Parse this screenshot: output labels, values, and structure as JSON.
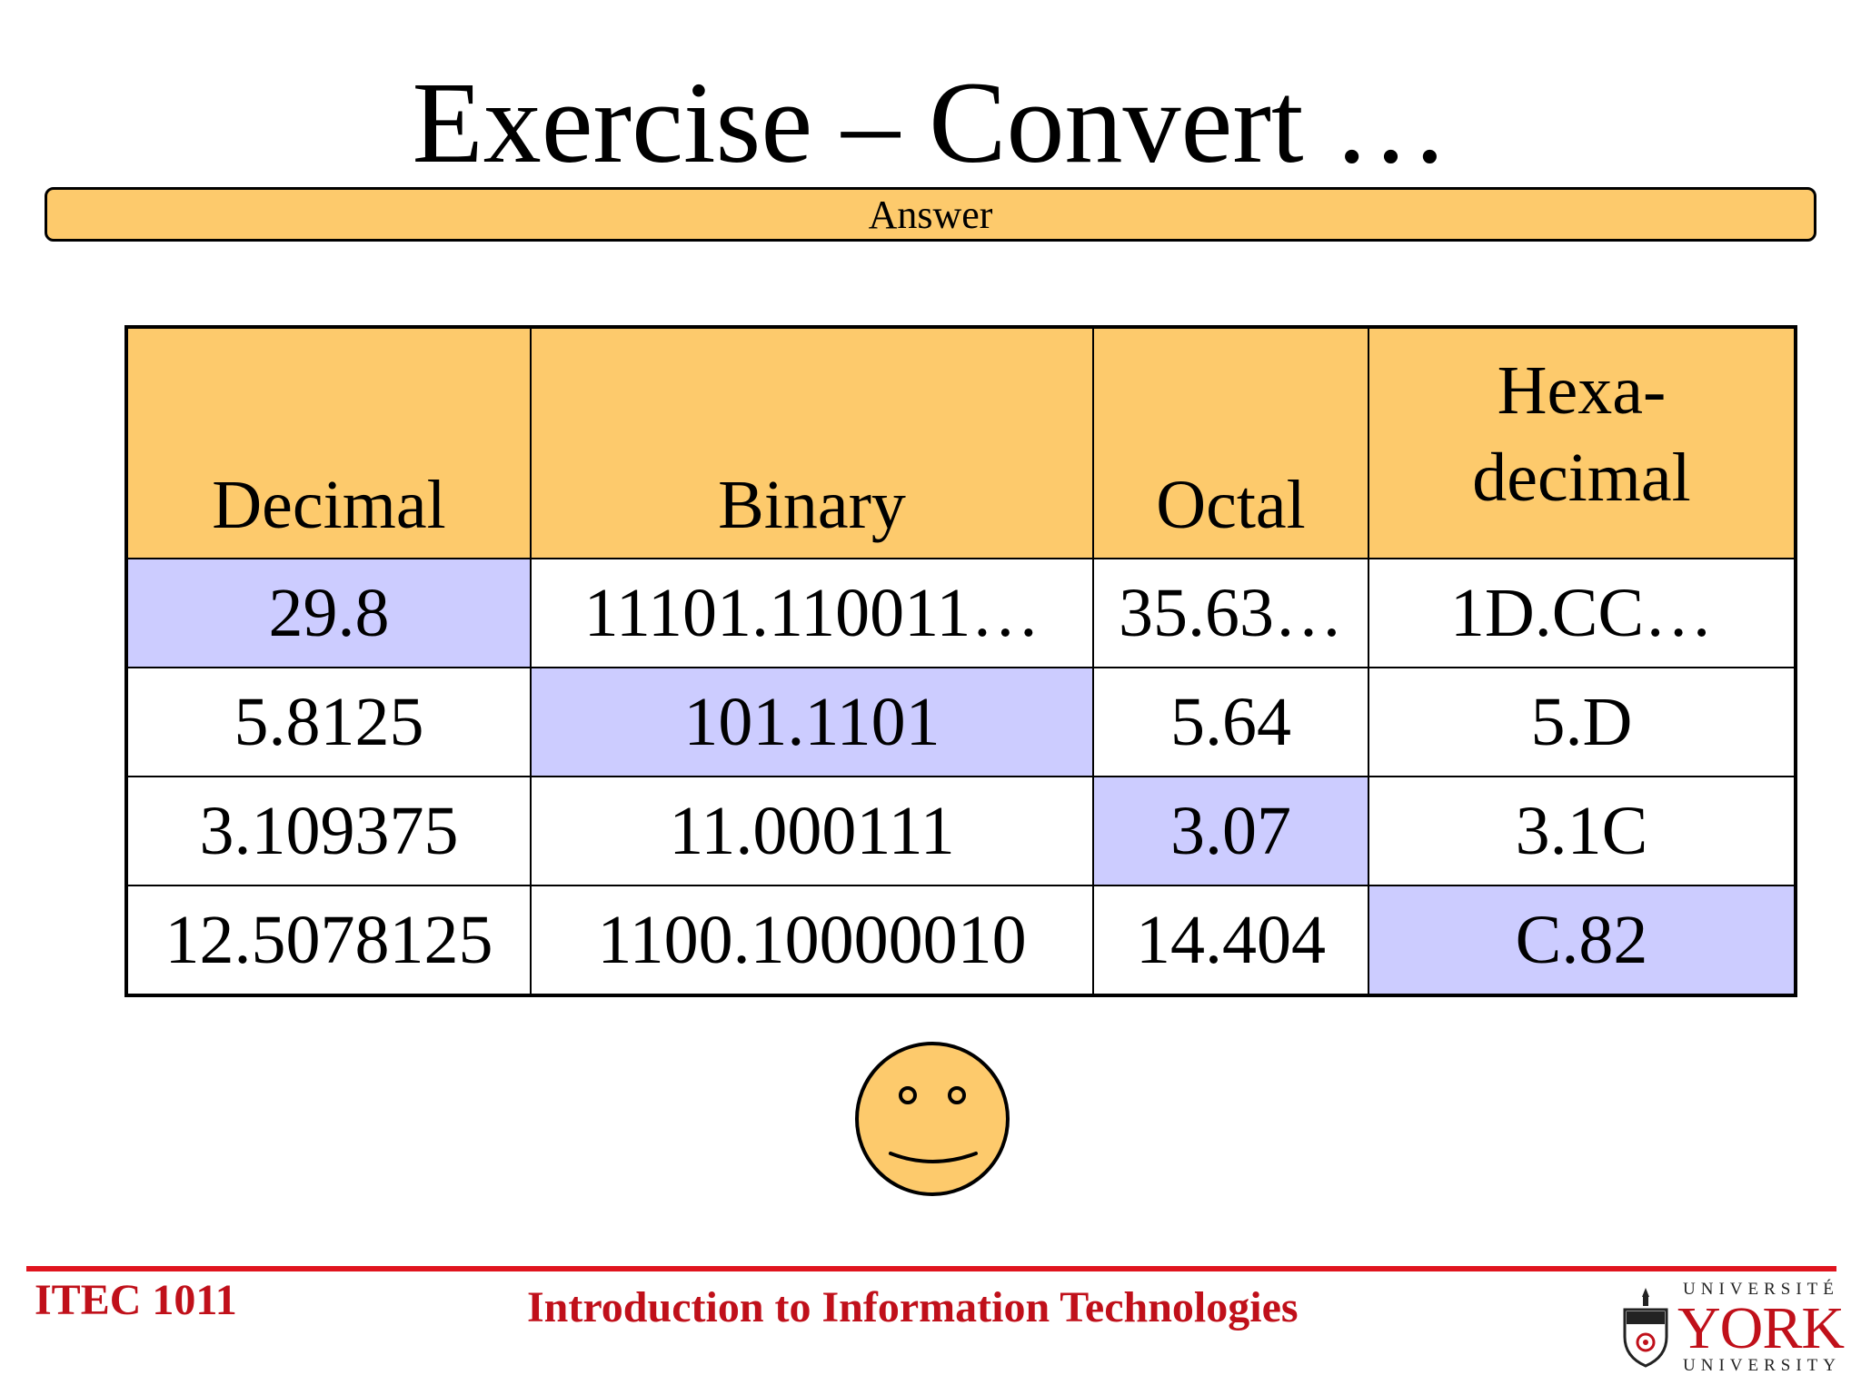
{
  "title": "Exercise – Convert …",
  "answer_label": "Answer",
  "table": {
    "headers": [
      "Decimal",
      "Binary",
      "Octal",
      "Hexa-\ndecimal"
    ],
    "rows": [
      [
        "29.8",
        "11101.110011…",
        "35.63…",
        "1D.CC…"
      ],
      [
        "5.8125",
        "101.1101",
        "5.64",
        "5.D"
      ],
      [
        "3.109375",
        "11.000111",
        "3.07",
        "3.1C"
      ],
      [
        "12.5078125",
        "1100.10000010",
        "14.404",
        "C.82"
      ]
    ]
  },
  "footer": {
    "course_code": "ITEC 1011",
    "course_name": "Introduction to Information Technologies"
  },
  "logo": {
    "top": "UNIVERSITÉ",
    "mid": "YORK",
    "bottom": "UNIVERSITY"
  },
  "colors": {
    "header_fill": "#fdca6c",
    "highlight_fill": "#ccccff",
    "footer_red": "#c0101a"
  }
}
